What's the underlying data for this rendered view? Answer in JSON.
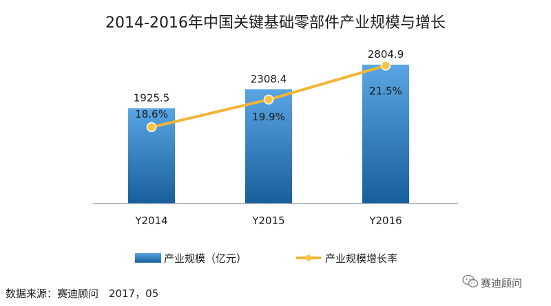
{
  "chart_data": {
    "type": "bar",
    "title": "2014-2016年中国关键基础零部件产业规模与增长",
    "categories": [
      "Y2014",
      "Y2015",
      "Y2016"
    ],
    "series": [
      {
        "name": "产业规模（亿元）",
        "kind": "bar",
        "values": [
          1925.5,
          2308.4,
          2804.9
        ],
        "labels": [
          "1925.5",
          "2308.4",
          "2804.9"
        ]
      },
      {
        "name": "产业规模增长率",
        "kind": "line",
        "values": [
          18.6,
          19.9,
          21.5
        ],
        "labels": [
          "18.6%",
          "19.9%",
          "21.5%"
        ]
      }
    ],
    "ylim_bar": [
      0,
      3000
    ],
    "ylim_line": [
      15,
      22
    ],
    "xlabel": "",
    "ylabel": "",
    "grid": false,
    "legend": "bottom",
    "colors": {
      "bar_top": "#5aa5e3",
      "bar_bottom": "#175e9c",
      "line": "#f2b536",
      "marker_fill": "#f7c548",
      "marker_stroke": "#ffffff",
      "axis": "#9aa3ad"
    }
  },
  "source": "数据来源：赛迪顾问　2017，05",
  "watermark": "赛迪顾问",
  "watermark_icon": "wechat-icon"
}
